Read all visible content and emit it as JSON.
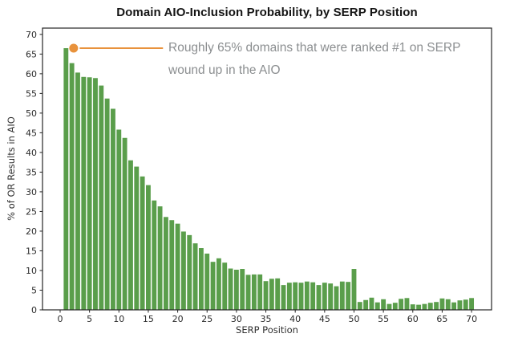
{
  "chart_data": {
    "type": "bar",
    "title": "Domain AIO-Inclusion Probability, by SERP Position",
    "xlabel": "SERP Position",
    "ylabel": "% of OR Results in AIO",
    "x": [
      1,
      2,
      3,
      4,
      5,
      6,
      7,
      8,
      9,
      10,
      11,
      12,
      13,
      14,
      15,
      16,
      17,
      18,
      19,
      20,
      21,
      22,
      23,
      24,
      25,
      26,
      27,
      28,
      29,
      30,
      31,
      32,
      33,
      34,
      35,
      36,
      37,
      38,
      39,
      40,
      41,
      42,
      43,
      44,
      45,
      46,
      47,
      48,
      49,
      50,
      51,
      52,
      53,
      54,
      55,
      56,
      57,
      58,
      59,
      60,
      61,
      62,
      63,
      64,
      65,
      66,
      67,
      68,
      69,
      70
    ],
    "values": [
      66.5,
      62.7,
      60.3,
      59.2,
      59.1,
      58.9,
      57.0,
      53.7,
      51.1,
      45.8,
      43.7,
      38.0,
      36.4,
      33.9,
      31.7,
      27.8,
      26.3,
      23.6,
      22.8,
      21.9,
      19.9,
      19.0,
      16.9,
      15.7,
      14.3,
      12.2,
      13.1,
      12.0,
      10.5,
      10.2,
      10.4,
      8.9,
      9.0,
      9.0,
      7.3,
      7.9,
      8.0,
      6.3,
      6.9,
      7.0,
      6.9,
      7.2,
      7.0,
      6.3,
      6.9,
      6.7,
      6.0,
      7.2,
      7.1,
      10.4,
      2.0,
      2.5,
      3.1,
      1.9,
      2.7,
      1.5,
      1.8,
      2.8,
      3.0,
      1.4,
      1.3,
      1.5,
      1.8,
      2.0,
      2.9,
      2.7,
      1.9,
      2.4,
      2.6,
      3.0
    ],
    "x_ticks": [
      0,
      5,
      10,
      15,
      20,
      25,
      30,
      35,
      40,
      45,
      50,
      55,
      60,
      65,
      70
    ],
    "y_ticks": [
      0,
      5,
      10,
      15,
      20,
      25,
      30,
      35,
      40,
      45,
      50,
      55,
      60,
      65,
      70
    ],
    "xlim": [
      -3.0,
      73.4
    ],
    "ylim": [
      0,
      71.6
    ],
    "grid": false,
    "legend": null,
    "bar_width": 0.8,
    "bar_color": "#5a9e4b",
    "axis_color": "#262626",
    "tick_label_color": "#2b2b2b",
    "annotation": {
      "line1": "Roughly 65% domains that were ranked #1 on SERP",
      "line2": "wound up in the AIO",
      "point_x": 2.3,
      "point_y": 66.5,
      "line_end_x": 17.5,
      "color": "#e8923c",
      "text_color": "#8b8e90"
    }
  }
}
